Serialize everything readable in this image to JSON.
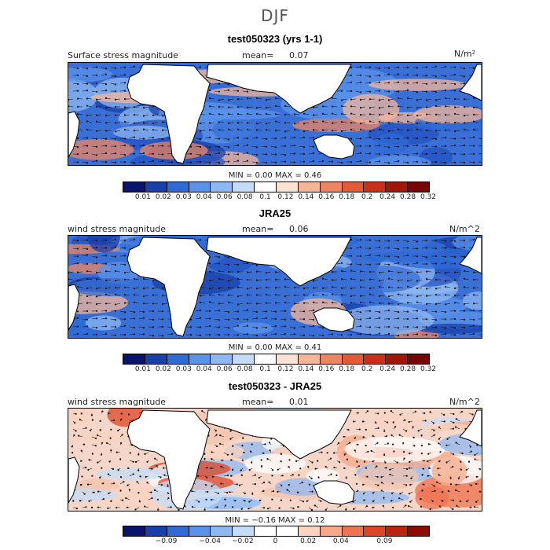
{
  "figure_title": "DJF",
  "palette_anom": [
    "#08146e",
    "#1a3fa8",
    "#2f6ad6",
    "#5b93ea",
    "#8fb8f2",
    "#c4dcf8",
    "#ffffff",
    "#ffffff",
    "#fbd3c0",
    "#f6a889",
    "#ee7452",
    "#dd4526",
    "#bd2410",
    "#8e0a05"
  ],
  "palette_seq": [
    "#08146e",
    "#1a3fa8",
    "#2f6ad6",
    "#5b93ea",
    "#8fb8f2",
    "#c4dcf8",
    "#ffffff",
    "#fbe2d2",
    "#f6b598",
    "#ee8562",
    "#e25a36",
    "#c8301a",
    "#a0170a",
    "#780404"
  ],
  "panels": [
    {
      "title": "test050323 (yrs 1-1)",
      "left_label": "Surface stress magnitude",
      "mean_label": "mean=",
      "mean_value": "0.07",
      "units": "N/m²",
      "stats": "MIN =    0.00  MAX =    0.46",
      "colorbar_labels": [
        "0.01",
        "0.02",
        "0.03",
        "0.04",
        "0.06",
        "0.08",
        "0.1",
        "0.12",
        "0.14",
        "0.16",
        "0.18",
        "0.2",
        "0.24",
        "0.28",
        "0.32"
      ]
    },
    {
      "title": "JRA25",
      "left_label": "wind stress magnitude",
      "mean_label": "mean=",
      "mean_value": "0.06",
      "units": "N/m^2",
      "stats": "MIN =    0.00  MAX =    0.41",
      "colorbar_labels": [
        "0.01",
        "0.02",
        "0.03",
        "0.04",
        "0.06",
        "0.08",
        "0.1",
        "0.12",
        "0.14",
        "0.16",
        "0.18",
        "0.2",
        "0.24",
        "0.28",
        "0.32"
      ]
    },
    {
      "title": "test050323 - JRA25",
      "left_label": "wind stress magnitude",
      "mean_label": "mean=",
      "mean_value": "0.01",
      "units": "N/m^2",
      "stats": "MIN =   −0.16  MAX =    0.12",
      "colorbar_labels": [
        "−0.09",
        "−0.04",
        "−0.02",
        "0",
        "0.02",
        "0.04",
        "0.09"
      ]
    }
  ]
}
